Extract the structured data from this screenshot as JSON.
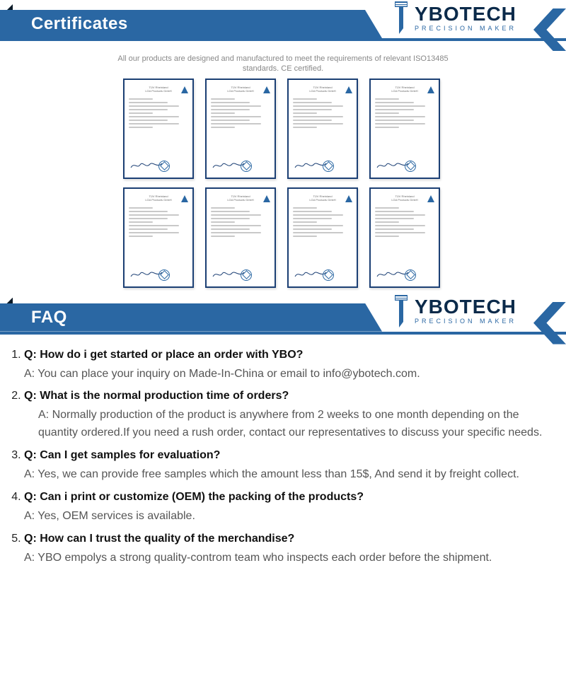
{
  "colors": {
    "brand_blue": "#2a67a3",
    "dark_navy": "#0b2a4a",
    "tab_dark": "#0b1a27",
    "text_grey": "#555555",
    "caption_grey": "#888888",
    "cert_border": "#1b3f74"
  },
  "logo": {
    "main": "YBOTECH",
    "sub": "PRECISION MAKER"
  },
  "sections": {
    "certificates": {
      "title": "Certificates"
    },
    "faq": {
      "title": "FAQ"
    }
  },
  "certificates": {
    "caption_line1": "All our products are designed and manufactured to meet the requirements of relevant ISO13485",
    "caption_line2": "standards. CE certified.",
    "count": 8
  },
  "faq": [
    {
      "q": "Q: How do i get started or place an order with YBO?",
      "a": "A: You can place your inquiry on Made-In-China or email to info@ybotech.com."
    },
    {
      "q": "Q: What is the normal production time of orders?",
      "a": "A: Normally production of the product is anywhere from 2 weeks to one month depending on the quantity ordered.If you need a rush order, contact our representatives to discuss your specific needs."
    },
    {
      "q": "Q: Can I get samples for evaluation?",
      "a": "A: Yes, we can provide free samples which the amount less than 15$, And send it by freight collect."
    },
    {
      "q": "Q: Can i print or customize (OEM) the packing of the products?",
      "a": "A: Yes,  OEM services is available."
    },
    {
      "q": "Q: How can I trust the quality of the merchandise?",
      "a": "A: YBO empolys a strong quality-controm team who inspects each order before the shipment."
    }
  ]
}
